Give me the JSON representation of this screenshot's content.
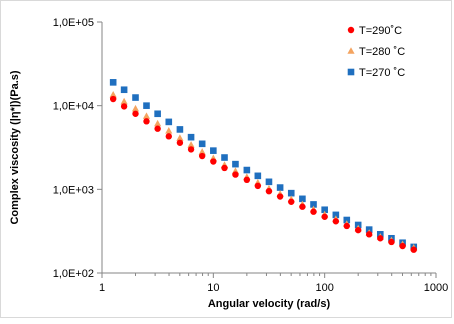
{
  "chart_data": {
    "type": "scatter",
    "x_scale": "log",
    "y_scale": "log",
    "xlabel": "Angular velocity (rad/s)",
    "ylabel": "Complex viscosity (|η*|)(Pa.s)",
    "xlim": [
      1,
      1000
    ],
    "ylim": [
      100,
      100000
    ],
    "x_tick_labels": [
      "1",
      "10",
      "100",
      "1000"
    ],
    "y_tick_labels": [
      "1,0E+02",
      "1,0E+03",
      "1,0E+04",
      "1,0E+05"
    ],
    "legend_position": "top-right",
    "grid": false,
    "x": [
      1.26,
      1.58,
      2.0,
      2.51,
      3.16,
      3.98,
      5.01,
      6.31,
      7.94,
      10.0,
      12.6,
      15.8,
      20.0,
      25.1,
      31.6,
      39.8,
      50.1,
      63.1,
      79.4,
      100,
      126,
      158,
      200,
      251,
      316,
      398,
      501,
      631
    ],
    "series": [
      {
        "name": "T=290˚C",
        "color": "#ff0000",
        "marker": "circle",
        "values": [
          12000,
          9800,
          8000,
          6500,
          5300,
          4300,
          3600,
          3000,
          2500,
          2150,
          1800,
          1500,
          1300,
          1100,
          950,
          820,
          710,
          620,
          540,
          470,
          415,
          365,
          325,
          290,
          260,
          235,
          210,
          190
        ]
      },
      {
        "name": "T=280 ˚C",
        "color": "#f4a460",
        "marker": "triangle",
        "values": [
          13500,
          11200,
          9200,
          7500,
          6100,
          5000,
          4100,
          3400,
          2800,
          2350,
          1950,
          1650,
          1400,
          1200,
          1020,
          880,
          760,
          660,
          575,
          500,
          440,
          385,
          340,
          300,
          270,
          245,
          220,
          200
        ]
      },
      {
        "name": "T=270 ˚C",
        "color": "#1f6fbf",
        "marker": "square",
        "values": [
          19000,
          15500,
          12500,
          10000,
          8000,
          6400,
          5200,
          4200,
          3500,
          2900,
          2400,
          2000,
          1700,
          1450,
          1230,
          1050,
          900,
          770,
          660,
          570,
          495,
          430,
          375,
          330,
          290,
          260,
          230,
          205
        ]
      }
    ]
  }
}
